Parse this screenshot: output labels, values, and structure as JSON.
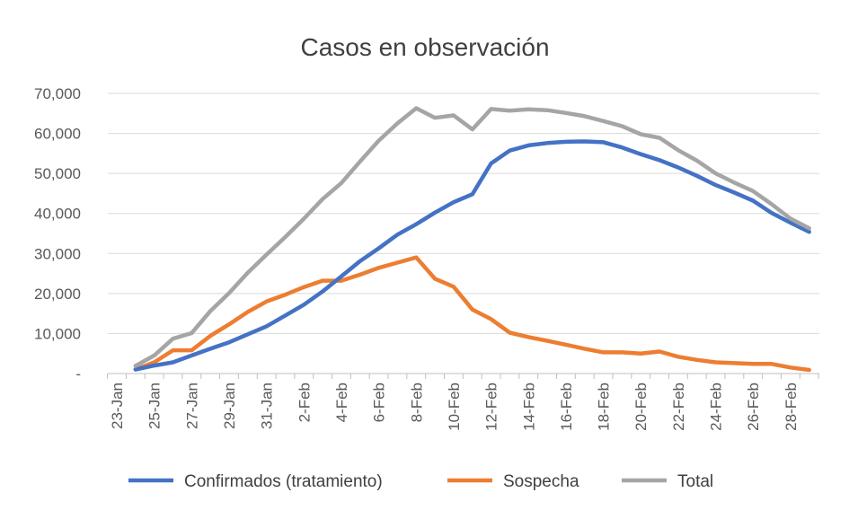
{
  "chart_data": {
    "type": "line",
    "title": "Casos en observación",
    "xlabel": "",
    "ylabel": "",
    "ylim": [
      0,
      70000
    ],
    "yticks": [
      0,
      10000,
      20000,
      30000,
      40000,
      50000,
      60000,
      70000
    ],
    "ytick_labels": [
      "-",
      "10,000",
      "20,000",
      "30,000",
      "40,000",
      "50,000",
      "60,000",
      "70,000"
    ],
    "grid": "horizontal",
    "legend_position": "bottom",
    "x_tick_labels": [
      "23-Jan",
      "25-Jan",
      "27-Jan",
      "29-Jan",
      "31-Jan",
      "2-Feb",
      "4-Feb",
      "6-Feb",
      "8-Feb",
      "10-Feb",
      "12-Feb",
      "14-Feb",
      "16-Feb",
      "18-Feb",
      "20-Feb",
      "22-Feb",
      "24-Feb",
      "26-Feb",
      "28-Feb"
    ],
    "x": [
      "24-Jan",
      "25-Jan",
      "26-Jan",
      "27-Jan",
      "28-Jan",
      "29-Jan",
      "30-Jan",
      "31-Jan",
      "1-Feb",
      "2-Feb",
      "3-Feb",
      "4-Feb",
      "5-Feb",
      "6-Feb",
      "7-Feb",
      "8-Feb",
      "9-Feb",
      "10-Feb",
      "11-Feb",
      "12-Feb",
      "13-Feb",
      "14-Feb",
      "15-Feb",
      "16-Feb",
      "17-Feb",
      "18-Feb",
      "19-Feb",
      "20-Feb",
      "21-Feb",
      "22-Feb",
      "23-Feb",
      "24-Feb",
      "25-Feb",
      "26-Feb",
      "27-Feb",
      "28-Feb",
      "29-Feb"
    ],
    "series": [
      {
        "name": "Confirmados (tratamiento)",
        "color": "#4472C4",
        "values": [
          1000,
          2000,
          2800,
          4500,
          6200,
          7800,
          9800,
          11800,
          14500,
          17200,
          20500,
          24300,
          28100,
          31300,
          34700,
          37300,
          40200,
          42800,
          44800,
          52500,
          55700,
          57000,
          57600,
          57900,
          58000,
          57800,
          56500,
          54800,
          53300,
          51500,
          49400,
          47100,
          45200,
          43200,
          40100,
          37700,
          35400
        ]
      },
      {
        "name": "Sospecha",
        "color": "#ED7D31",
        "values": [
          1000,
          2800,
          5800,
          5800,
          9400,
          12300,
          15400,
          18000,
          19700,
          21600,
          23200,
          23200,
          24700,
          26400,
          27700,
          29000,
          23700,
          21700,
          16000,
          13600,
          10200,
          9100,
          8200,
          7200,
          6200,
          5300,
          5300,
          5000,
          5500,
          4200,
          3400,
          2800,
          2600,
          2400,
          2400,
          1500,
          900
        ]
      },
      {
        "name": "Total",
        "color": "#A5A5A5",
        "values": [
          1900,
          4500,
          8700,
          10100,
          15600,
          20100,
          25200,
          29700,
          34100,
          38700,
          43600,
          47600,
          53000,
          58200,
          62500,
          66300,
          63900,
          64500,
          61000,
          66100,
          65700,
          66000,
          65800,
          65100,
          64300,
          63100,
          61800,
          59800,
          58900,
          55800,
          53200,
          50000,
          47700,
          45600,
          42300,
          38700,
          36300
        ]
      }
    ]
  }
}
